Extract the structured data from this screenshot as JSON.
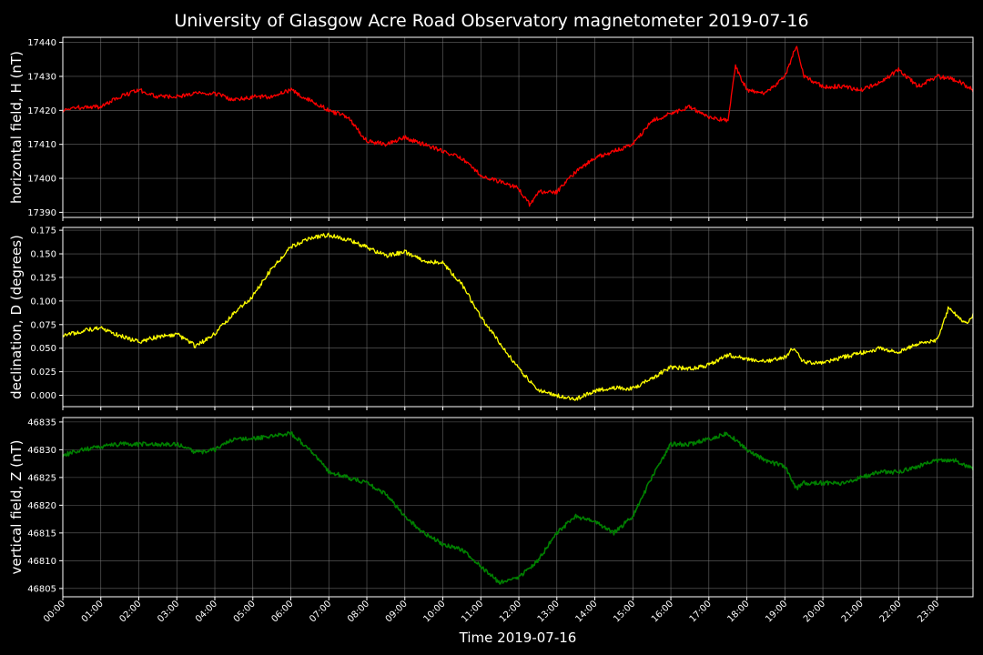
{
  "figure": {
    "title": "University of Glasgow Acre Road Observatory magnetometer 2019-07-16",
    "xlabel": "Time 2019-07-16",
    "background": "#000000",
    "grid_color": "#808080"
  },
  "chart_data": [
    {
      "type": "line",
      "ylabel": "horizontal field, H (nT)",
      "color": "#ff0000",
      "ylim": [
        17388.5,
        17441.5
      ],
      "yticks": [
        17390,
        17400,
        17410,
        17420,
        17430,
        17440
      ],
      "grid": true,
      "series": [
        {
          "x": [
            0,
            0.5,
            1,
            1.5,
            2,
            2.5,
            3,
            3.5,
            4,
            4.5,
            5,
            5.5,
            6,
            6.5,
            7,
            7.5,
            8,
            8.5,
            9,
            9.5,
            10,
            10.5,
            11,
            11.5,
            12,
            12.3,
            12.5,
            13,
            13.5,
            14,
            14.5,
            15,
            15.5,
            16,
            16.5,
            17,
            17.5,
            17.7,
            18,
            18.5,
            19,
            19.3,
            19.5,
            20,
            20.5,
            21,
            21.5,
            22,
            22.5,
            23,
            23.5,
            23.95
          ],
          "y": [
            17420,
            17421,
            17421,
            17424,
            17426,
            17424,
            17424,
            17425,
            17425,
            17423,
            17424,
            17424,
            17426,
            17423,
            17420,
            17418,
            17411,
            17410,
            17412,
            17410,
            17408,
            17406,
            17401,
            17399,
            17397,
            17392,
            17396,
            17396,
            17402,
            17406,
            17408,
            17410,
            17417,
            17419,
            17421,
            17418,
            17417,
            17433,
            17426,
            17425,
            17430,
            17439,
            17430,
            17427,
            17427,
            17426,
            17428,
            17432,
            17427,
            17430,
            17429,
            17426
          ]
        }
      ]
    },
    {
      "type": "line",
      "ylabel": "declination, D (degrees)",
      "color": "#ffff00",
      "ylim": [
        -0.012,
        0.178
      ],
      "yticks": [
        0.0,
        0.025,
        0.05,
        0.075,
        0.1,
        0.125,
        0.15,
        0.175
      ],
      "ytick_labels": [
        "0.000",
        "0.025",
        "0.050",
        "0.075",
        "0.100",
        "0.125",
        "0.150",
        "0.175"
      ],
      "grid": true,
      "series": [
        {
          "x": [
            0,
            0.5,
            1,
            1.5,
            2,
            2.5,
            3,
            3.5,
            4,
            4.5,
            5,
            5.5,
            6,
            6.5,
            7,
            7.5,
            8,
            8.5,
            9,
            9.5,
            10,
            10.5,
            11,
            11.5,
            12,
            12.5,
            13,
            13.5,
            14,
            14.5,
            15,
            15.5,
            16,
            16.5,
            17,
            17.5,
            18,
            18.5,
            19,
            19.2,
            19.5,
            20,
            20.5,
            21,
            21.5,
            22,
            22.5,
            23,
            23.3,
            23.5,
            23.8,
            23.95
          ],
          "y": [
            0.063,
            0.068,
            0.072,
            0.063,
            0.057,
            0.062,
            0.065,
            0.052,
            0.065,
            0.087,
            0.105,
            0.135,
            0.157,
            0.167,
            0.17,
            0.165,
            0.157,
            0.148,
            0.152,
            0.143,
            0.14,
            0.118,
            0.083,
            0.055,
            0.028,
            0.005,
            0.0,
            -0.004,
            0.005,
            0.008,
            0.007,
            0.018,
            0.03,
            0.028,
            0.032,
            0.043,
            0.038,
            0.036,
            0.04,
            0.05,
            0.035,
            0.035,
            0.04,
            0.045,
            0.05,
            0.046,
            0.055,
            0.058,
            0.092,
            0.085,
            0.075,
            0.085
          ]
        }
      ]
    },
    {
      "type": "line",
      "ylabel": "vertical field, Z (nT)",
      "color": "#008000",
      "ylim": [
        46803.5,
        46835.8
      ],
      "yticks": [
        46805,
        46810,
        46815,
        46820,
        46825,
        46830,
        46835
      ],
      "grid": true,
      "series": [
        {
          "x": [
            0,
            0.5,
            1,
            1.5,
            2,
            2.5,
            3,
            3.5,
            4,
            4.5,
            5,
            5.5,
            6,
            6.5,
            7,
            7.5,
            8,
            8.5,
            9,
            9.5,
            10,
            10.5,
            11,
            11.5,
            12,
            12.5,
            13,
            13.5,
            14,
            14.5,
            15,
            15.5,
            16,
            16.5,
            17,
            17.5,
            18,
            18.5,
            19,
            19.3,
            19.5,
            20,
            20.5,
            21,
            21.5,
            22,
            22.5,
            23,
            23.5,
            23.95
          ],
          "y": [
            46829,
            46830,
            46830.5,
            46831,
            46831,
            46831,
            46831,
            46829.5,
            46830,
            46832,
            46832,
            46832.5,
            46833,
            46830,
            46826,
            46825,
            46824,
            46822,
            46818,
            46815,
            46813,
            46812,
            46809,
            46806,
            46807,
            46810,
            46815,
            46818,
            46817,
            46815,
            46818,
            46825,
            46831,
            46831,
            46832,
            46833,
            46830,
            46828,
            46827,
            46823,
            46824,
            46824,
            46824,
            46825,
            46826,
            46826,
            46827,
            46828,
            46828,
            46826.5
          ]
        }
      ]
    }
  ],
  "x_axis": {
    "xlim": [
      0,
      23.95
    ],
    "ticks": [
      0,
      1,
      2,
      3,
      4,
      5,
      6,
      7,
      8,
      9,
      10,
      11,
      12,
      13,
      14,
      15,
      16,
      17,
      18,
      19,
      20,
      21,
      22,
      23
    ],
    "tick_labels": [
      "00:00",
      "01:00",
      "02:00",
      "03:00",
      "04:00",
      "05:00",
      "06:00",
      "07:00",
      "08:00",
      "09:00",
      "10:00",
      "11:00",
      "12:00",
      "13:00",
      "14:00",
      "15:00",
      "16:00",
      "17:00",
      "18:00",
      "19:00",
      "20:00",
      "21:00",
      "22:00",
      "23:00"
    ]
  }
}
